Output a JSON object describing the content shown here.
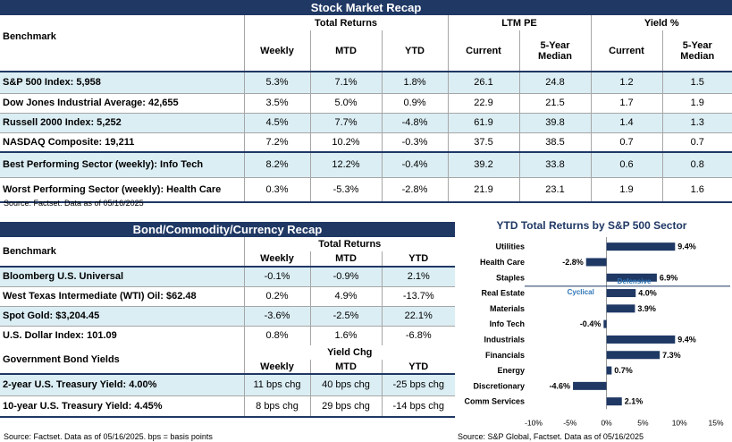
{
  "stock": {
    "title": "Stock Market Recap",
    "benchmark_header": "Benchmark",
    "total_returns_header": "Total Returns",
    "ltm_pe_header": "LTM PE",
    "yield_header": "Yield %",
    "cols": [
      "Weekly",
      "MTD",
      "YTD",
      "Current",
      "5-Year Median",
      "Current",
      "5-Year Median"
    ],
    "rows": [
      {
        "name": "S&P 500 Index: 5,958",
        "vals": [
          "5.3%",
          "7.1%",
          "1.8%",
          "26.1",
          "24.8",
          "1.2",
          "1.5"
        ]
      },
      {
        "name": "Dow Jones Industrial Average: 42,655",
        "vals": [
          "3.5%",
          "5.0%",
          "0.9%",
          "22.9",
          "21.5",
          "1.7",
          "1.9"
        ]
      },
      {
        "name": "Russell 2000 Index: 5,252",
        "vals": [
          "4.5%",
          "7.7%",
          "-4.8%",
          "61.9",
          "39.8",
          "1.4",
          "1.3"
        ]
      },
      {
        "name": "NASDAQ Composite: 19,211",
        "vals": [
          "7.2%",
          "10.2%",
          "-0.3%",
          "37.5",
          "38.5",
          "0.7",
          "0.7"
        ]
      },
      {
        "name": "Best Performing Sector (weekly): Info Tech",
        "vals": [
          "8.2%",
          "12.2%",
          "-0.4%",
          "39.2",
          "33.8",
          "0.6",
          "0.8"
        ]
      },
      {
        "name": "Worst Performing Sector (weekly): Health Care",
        "vals": [
          "0.3%",
          "-5.3%",
          "-2.8%",
          "21.9",
          "23.1",
          "1.9",
          "1.6"
        ]
      }
    ],
    "source": "Source: Factset. Data as of 05/16/2025"
  },
  "bond": {
    "title": "Bond/Commodity/Currency Recap",
    "benchmark_header": "Benchmark",
    "total_returns_header": "Total Returns",
    "cols": [
      "Weekly",
      "MTD",
      "YTD"
    ],
    "rows": [
      {
        "name": "Bloomberg U.S. Universal",
        "vals": [
          "-0.1%",
          "-0.9%",
          "2.1%"
        ]
      },
      {
        "name": "West Texas Intermediate (WTI) Oil: $62.48",
        "vals": [
          "0.2%",
          "4.9%",
          "-13.7%"
        ]
      },
      {
        "name": "Spot Gold: $3,204.45",
        "vals": [
          "-3.6%",
          "-2.5%",
          "22.1%"
        ]
      },
      {
        "name": "U.S. Dollar Index: 101.09",
        "vals": [
          "0.8%",
          "1.6%",
          "-6.8%"
        ]
      }
    ],
    "gov_header": "Government Bond Yields",
    "yield_chg_header": "Yield Chg",
    "gov_cols": [
      "Weekly",
      "MTD",
      "YTD"
    ],
    "gov_rows": [
      {
        "name": "2-year U.S. Treasury Yield: 4.00%",
        "vals": [
          "11 bps chg",
          "40 bps chg",
          "-25 bps chg"
        ]
      },
      {
        "name": "10-year U.S. Treasury Yield: 4.45%",
        "vals": [
          "8 bps chg",
          "29 bps chg",
          "-14 bps chg"
        ]
      }
    ],
    "source": "Source: Factset. Data as of 05/16/2025. bps = basis points"
  },
  "chart_data": {
    "type": "bar",
    "orientation": "horizontal",
    "title": "YTD Total Returns by S&P 500 Sector",
    "categories": [
      "Utilities",
      "Health Care",
      "Staples",
      "Real Estate",
      "Materials",
      "Info Tech",
      "Industrials",
      "Financials",
      "Energy",
      "Discretionary",
      "Comm Services"
    ],
    "values": [
      9.4,
      -2.8,
      6.9,
      4.0,
      3.9,
      -0.4,
      9.4,
      7.3,
      0.7,
      -4.6,
      2.1
    ],
    "data_labels": [
      "9.4%",
      "-2.8%",
      "6.9%",
      "4.0%",
      "3.9%",
      "-0.4%",
      "9.4%",
      "7.3%",
      "0.7%",
      "-4.6%",
      "2.1%"
    ],
    "xlim": [
      -10,
      15
    ],
    "xticks": [
      -10,
      -5,
      0,
      5,
      10,
      15
    ],
    "xtick_labels": [
      "-10%",
      "-5%",
      "0%",
      "5%",
      "10%",
      "15%"
    ],
    "groups": [
      {
        "label": "Defensive",
        "count": 3
      },
      {
        "label": "Cyclical",
        "count": 8
      }
    ],
    "bar_color": "#1f3864",
    "grid": false,
    "source": "Source: S&P Global, Factset. Data as of 05/16/2025"
  }
}
